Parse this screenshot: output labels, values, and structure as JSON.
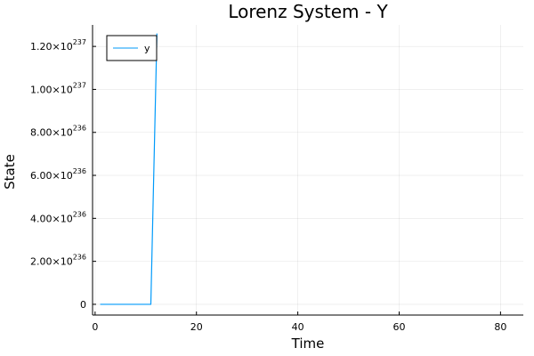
{
  "chart_data": {
    "type": "line",
    "title": "Lorenz System - Y",
    "xlabel": "Time",
    "ylabel": "State",
    "xlim": [
      -0.5,
      84.5
    ],
    "ylim": [
      -5e+235,
      1.3e+237
    ],
    "grid": true,
    "legend": {
      "placement": "top-left",
      "framed": true
    },
    "x_ticks": [
      {
        "value": 0,
        "label": "0"
      },
      {
        "value": 20,
        "label": "20"
      },
      {
        "value": 40,
        "label": "40"
      },
      {
        "value": 60,
        "label": "60"
      },
      {
        "value": 80,
        "label": "80"
      }
    ],
    "y_ticks": [
      {
        "value": 0,
        "label": "0",
        "mantissa": "",
        "exponent": ""
      },
      {
        "value": 2e+236,
        "label": "2.00×10^236",
        "mantissa": "2.00×10",
        "exponent": "236"
      },
      {
        "value": 4e+236,
        "label": "4.00×10^236",
        "mantissa": "4.00×10",
        "exponent": "236"
      },
      {
        "value": 6e+236,
        "label": "6.00×10^236",
        "mantissa": "6.00×10",
        "exponent": "236"
      },
      {
        "value": 8e+236,
        "label": "8.00×10^236",
        "mantissa": "8.00×10",
        "exponent": "236"
      },
      {
        "value": 1e+237,
        "label": "1.00×10^237",
        "mantissa": "1.00×10",
        "exponent": "237"
      },
      {
        "value": 1.2e+237,
        "label": "1.20×10^237",
        "mantissa": "1.20×10",
        "exponent": "237"
      }
    ],
    "series": [
      {
        "name": "y",
        "color": "#009AFA",
        "x": [
          1,
          2,
          3,
          4,
          5,
          6,
          7,
          8,
          9,
          10,
          11,
          12.2
        ],
        "y": [
          0,
          0,
          0,
          0,
          0,
          0,
          0,
          0,
          0,
          0,
          0,
          1.26e+237
        ]
      }
    ]
  }
}
